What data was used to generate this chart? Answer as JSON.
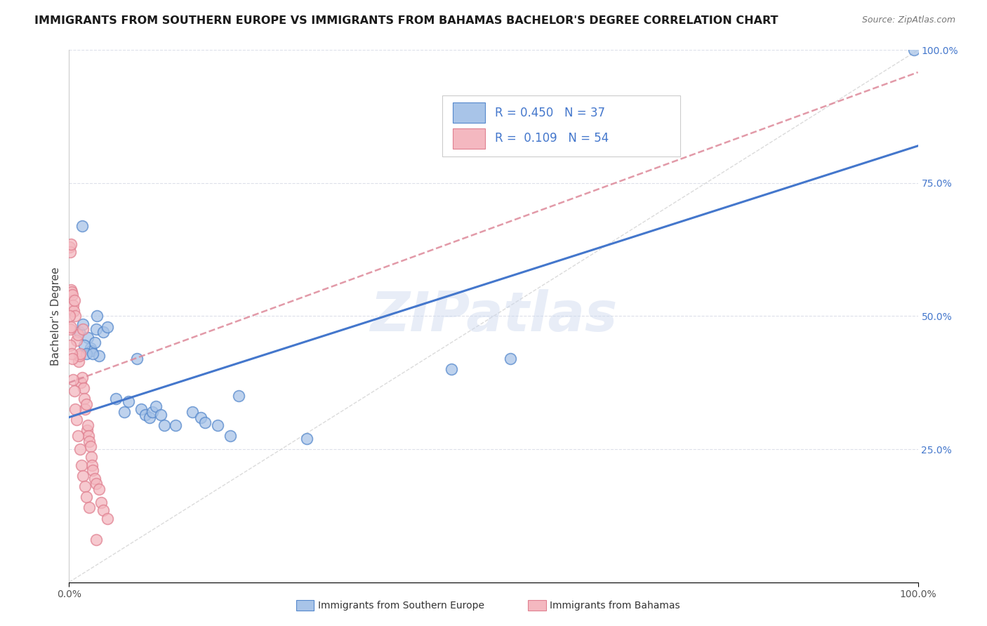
{
  "title": "IMMIGRANTS FROM SOUTHERN EUROPE VS IMMIGRANTS FROM BAHAMAS BACHELOR'S DEGREE CORRELATION CHART",
  "source": "Source: ZipAtlas.com",
  "ylabel": "Bachelor's Degree",
  "xlim": [
    0,
    100
  ],
  "ylim": [
    0,
    100
  ],
  "blue_R": 0.45,
  "blue_N": 37,
  "pink_R": 0.109,
  "pink_N": 54,
  "blue_color": "#a8c4e8",
  "pink_color": "#f4b8c0",
  "blue_edge_color": "#5588cc",
  "pink_edge_color": "#e08090",
  "blue_line_color": "#4477cc",
  "pink_line_color": "#dd8899",
  "diag_line_color": "#cccccc",
  "legend_label_blue": "Immigrants from Southern Europe",
  "legend_label_pink": "Immigrants from Bahamas",
  "watermark": "ZIPatlas",
  "blue_points": [
    [
      1.5,
      67.0
    ],
    [
      1.2,
      47.0
    ],
    [
      1.6,
      48.5
    ],
    [
      2.2,
      46.0
    ],
    [
      2.5,
      44.0
    ],
    [
      2.6,
      43.5
    ],
    [
      3.0,
      45.0
    ],
    [
      3.2,
      47.5
    ],
    [
      3.5,
      42.5
    ],
    [
      4.0,
      47.0
    ],
    [
      4.5,
      48.0
    ],
    [
      1.8,
      44.5
    ],
    [
      2.0,
      43.0
    ],
    [
      2.8,
      43.0
    ],
    [
      5.5,
      34.5
    ],
    [
      6.5,
      32.0
    ],
    [
      7.0,
      34.0
    ],
    [
      8.0,
      42.0
    ],
    [
      8.5,
      32.5
    ],
    [
      9.0,
      31.5
    ],
    [
      9.5,
      31.0
    ],
    [
      9.8,
      32.0
    ],
    [
      10.2,
      33.0
    ],
    [
      10.8,
      31.5
    ],
    [
      11.2,
      29.5
    ],
    [
      12.5,
      29.5
    ],
    [
      14.5,
      32.0
    ],
    [
      15.5,
      31.0
    ],
    [
      17.5,
      29.5
    ],
    [
      19.0,
      27.5
    ],
    [
      28.0,
      27.0
    ],
    [
      45.0,
      40.0
    ],
    [
      52.0,
      42.0
    ],
    [
      20.0,
      35.0
    ],
    [
      16.0,
      30.0
    ],
    [
      3.3,
      50.0
    ],
    [
      99.5,
      100.0
    ]
  ],
  "pink_points": [
    [
      0.08,
      63.0
    ],
    [
      0.12,
      62.0
    ],
    [
      0.18,
      63.5
    ],
    [
      0.25,
      55.0
    ],
    [
      0.3,
      54.5
    ],
    [
      0.38,
      54.0
    ],
    [
      0.5,
      52.0
    ],
    [
      0.55,
      51.0
    ],
    [
      0.65,
      53.0
    ],
    [
      0.75,
      50.0
    ],
    [
      0.85,
      45.5
    ],
    [
      1.0,
      46.5
    ],
    [
      1.1,
      41.5
    ],
    [
      1.2,
      42.5
    ],
    [
      1.3,
      43.0
    ],
    [
      1.4,
      37.5
    ],
    [
      1.5,
      38.5
    ],
    [
      1.6,
      47.5
    ],
    [
      1.7,
      36.5
    ],
    [
      1.8,
      34.5
    ],
    [
      1.9,
      32.5
    ],
    [
      2.0,
      33.5
    ],
    [
      2.1,
      28.5
    ],
    [
      2.2,
      29.5
    ],
    [
      2.3,
      27.5
    ],
    [
      2.4,
      26.5
    ],
    [
      2.5,
      25.5
    ],
    [
      2.6,
      23.5
    ],
    [
      2.7,
      22.0
    ],
    [
      2.8,
      21.0
    ],
    [
      3.0,
      19.5
    ],
    [
      3.2,
      18.5
    ],
    [
      3.5,
      17.5
    ],
    [
      3.8,
      15.0
    ],
    [
      4.0,
      13.5
    ],
    [
      4.5,
      12.0
    ],
    [
      0.05,
      50.0
    ],
    [
      0.1,
      44.5
    ],
    [
      0.15,
      47.5
    ],
    [
      0.2,
      48.0
    ],
    [
      0.28,
      43.0
    ],
    [
      0.35,
      42.0
    ],
    [
      0.45,
      38.0
    ],
    [
      0.6,
      36.0
    ],
    [
      0.7,
      32.5
    ],
    [
      0.9,
      30.5
    ],
    [
      1.05,
      27.5
    ],
    [
      1.25,
      25.0
    ],
    [
      1.45,
      22.0
    ],
    [
      1.65,
      20.0
    ],
    [
      1.85,
      18.0
    ],
    [
      2.05,
      16.0
    ],
    [
      2.4,
      14.0
    ],
    [
      3.2,
      8.0
    ]
  ],
  "blue_line_x": [
    0,
    100
  ],
  "blue_line_y": [
    31,
    82
  ],
  "pink_line_x": [
    0,
    6
  ],
  "pink_line_y": [
    37.5,
    41.0
  ],
  "background_color": "#ffffff",
  "grid_color": "#dde0ea",
  "title_fontsize": 11.5,
  "ylabel_fontsize": 11,
  "tick_fontsize": 10,
  "right_tick_color": "#4477cc"
}
